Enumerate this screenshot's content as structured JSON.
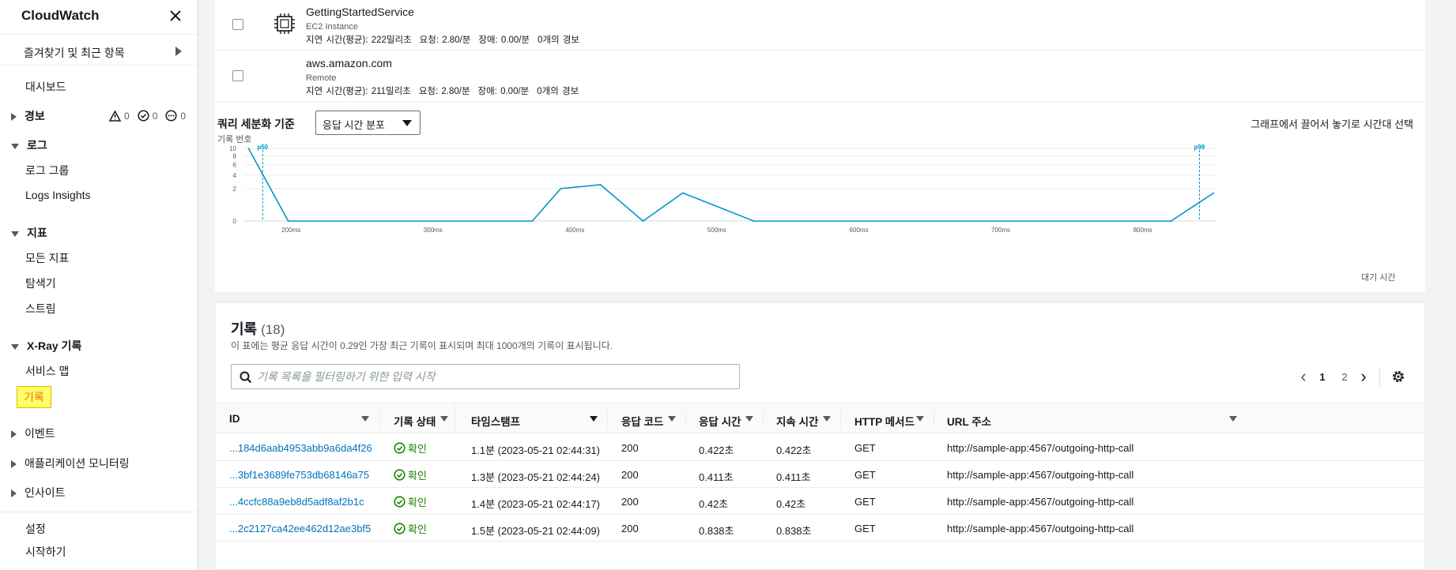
{
  "sidebar": {
    "title": "CloudWatch",
    "favorites": "즐겨찾기 및 최근 항목",
    "dashboards": "대시보드",
    "alarms": {
      "label": "경보",
      "alarm": "0",
      "ok": "0",
      "insufficient": "0"
    },
    "logs": {
      "label": "로그",
      "groups": "로그 그룹",
      "insights": "Logs Insights"
    },
    "metrics": {
      "label": "지표",
      "all": "모든 지표",
      "explorer": "탐색기",
      "streams": "스트림"
    },
    "xray": {
      "label": "X-Ray 기록",
      "servicemap": "서비스 맵",
      "traces": "기록"
    },
    "events": "이벤트",
    "appmon": "애플리케이션 모니터링",
    "insights": "인사이트",
    "settings": "설정",
    "getting_started": "시작하기"
  },
  "nodes": [
    {
      "name": "GettingStartedService",
      "type": "EC2 Instance",
      "latency": "지연 시간(평균): 222밀리초",
      "requests": "요청: 2.80/분",
      "faults": "장애: 0.00/분",
      "alarms": "0개의 경보"
    },
    {
      "name": "aws.amazon.com",
      "type": "Remote",
      "latency": "지연 시간(평균): 211밀리초",
      "requests": "요청: 2.80/분",
      "faults": "장애: 0.00/분",
      "alarms": "0개의 경보"
    }
  ],
  "graph": {
    "query_label": "쿼리 세분화 기준",
    "query_value": "응답 시간 분포",
    "hint": "그래프에서 끌어서 놓기로 시간대 선택",
    "ylabel": "기록 번호",
    "xlabel": "대기 시간",
    "p50": "p50",
    "p99": "p99",
    "line_color": "#0095c8"
  },
  "chart_data": {
    "type": "line",
    "xlabel": "대기 시간",
    "ylabel": "기록 번호",
    "x_ticks": [
      "200ms",
      "300ms",
      "400ms",
      "500ms",
      "600ms",
      "700ms",
      "800ms"
    ],
    "y_ticks": [
      "10",
      "8",
      "6",
      "4",
      "2",
      "0"
    ],
    "markers": [
      {
        "name": "p50",
        "x": 180
      },
      {
        "name": "p99",
        "x": 840
      }
    ],
    "series": [
      {
        "x": [
          170,
          198,
          370,
          390,
          418,
          448,
          476,
          526,
          562,
          820,
          850
        ],
        "values": [
          10,
          0,
          0,
          2,
          2.5,
          0,
          1.5,
          0,
          0,
          0,
          1.5
        ]
      }
    ]
  },
  "traces": {
    "title": "기록",
    "count": "(18)",
    "desc": "이 표에는 평균 응답 시간이 0.29인 가장 최근 기록이 표시되며 최대 1000개의 기록이 표시됩니다.",
    "search_placeholder": "기록 목록을 필터링하기 위한 입력 시작",
    "pages": [
      "1",
      "2"
    ],
    "columns": [
      "ID",
      "기록 상태",
      "타임스탬프",
      "응답 코드",
      "응답 시간",
      "지속 시간",
      "HTTP 메서드",
      "URL 주소"
    ],
    "rows": [
      {
        "id": "...184d6aab4953abb9a6da4f26",
        "status": "확인",
        "timestamp": "1.1분 (2023-05-21 02:44:31)",
        "code": "200",
        "response": "0.422초",
        "duration": "0.422초",
        "method": "GET",
        "url": "http://sample-app:4567/outgoing-http-call"
      },
      {
        "id": "...3bf1e3689fe753db68146a75",
        "status": "확인",
        "timestamp": "1.3분 (2023-05-21 02:44:24)",
        "code": "200",
        "response": "0.411초",
        "duration": "0.411초",
        "method": "GET",
        "url": "http://sample-app:4567/outgoing-http-call"
      },
      {
        "id": "...4ccfc88a9eb8d5adf8af2b1c",
        "status": "확인",
        "timestamp": "1.4분 (2023-05-21 02:44:17)",
        "code": "200",
        "response": "0.42초",
        "duration": "0.42초",
        "method": "GET",
        "url": "http://sample-app:4567/outgoing-http-call"
      },
      {
        "id": "...2c2127ca42ee462d12ae3bf5",
        "status": "확인",
        "timestamp": "1.5분 (2023-05-21 02:44:09)",
        "code": "200",
        "response": "0.838초",
        "duration": "0.838초",
        "method": "GET",
        "url": "http://sample-app:4567/outgoing-http-call"
      }
    ]
  }
}
